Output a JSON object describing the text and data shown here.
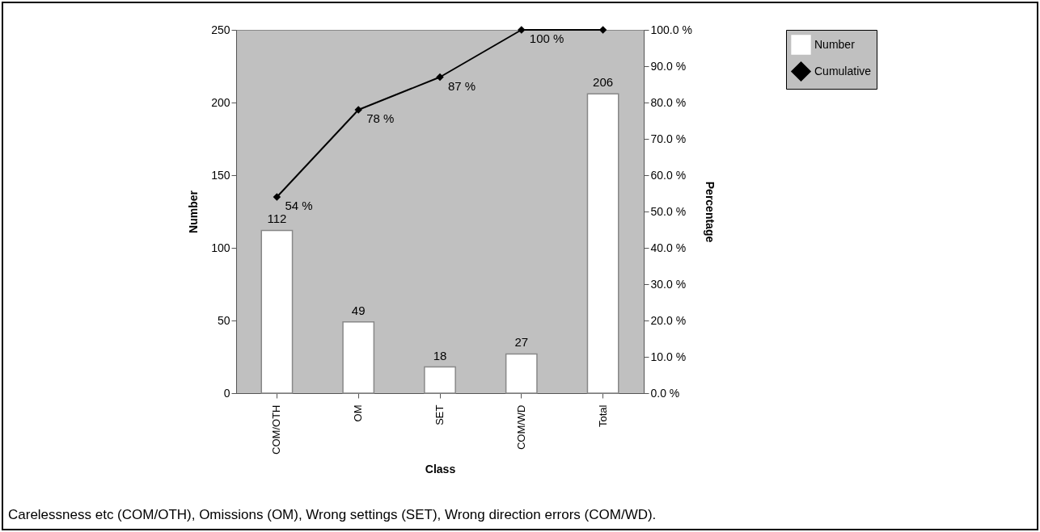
{
  "chart_data": {
    "type": "bar",
    "xlabel": "Class",
    "ylabel": "Number",
    "y2label": "Percentage",
    "categories": [
      "COM/OTH",
      "OM",
      "SET",
      "COM/WD",
      "Total"
    ],
    "series": [
      {
        "name": "Number",
        "color": "#ffffff",
        "values": [
          112,
          49,
          18,
          27,
          206
        ],
        "value_labels": [
          "112",
          "49",
          "18",
          "27",
          "206"
        ]
      },
      {
        "name": "Cumulative",
        "type": "line",
        "axis": "y2",
        "color": "#000000",
        "marker": "diamond",
        "values": [
          54,
          78,
          87,
          100,
          100
        ],
        "value_labels": [
          "54 %",
          "78 %",
          "87 %",
          "100 %",
          null
        ]
      }
    ],
    "ylim": [
      0,
      250
    ],
    "yticks": [
      0,
      50,
      100,
      150,
      200,
      250
    ],
    "y2lim": [
      0,
      100
    ],
    "y2ticks": [
      {
        "value": 0,
        "label": "0.0 %"
      },
      {
        "value": 10,
        "label": "10.0 %"
      },
      {
        "value": 20,
        "label": "20.0 %"
      },
      {
        "value": 30,
        "label": "30.0 %"
      },
      {
        "value": 40,
        "label": "40.0 %"
      },
      {
        "value": 50,
        "label": "50.0 %"
      },
      {
        "value": 60,
        "label": "60.0 %"
      },
      {
        "value": 70,
        "label": "70.0 %"
      },
      {
        "value": 80,
        "label": "80.0 %"
      },
      {
        "value": 90,
        "label": "90.0 %"
      },
      {
        "value": 100,
        "label": "100.0 %"
      }
    ],
    "grid": false,
    "legend": "right",
    "annotations": [
      "Carelessness etc (COM/OTH), Omissions (OM), Wrong settings (SET), Wrong direction errors (COM/WD)."
    ]
  }
}
